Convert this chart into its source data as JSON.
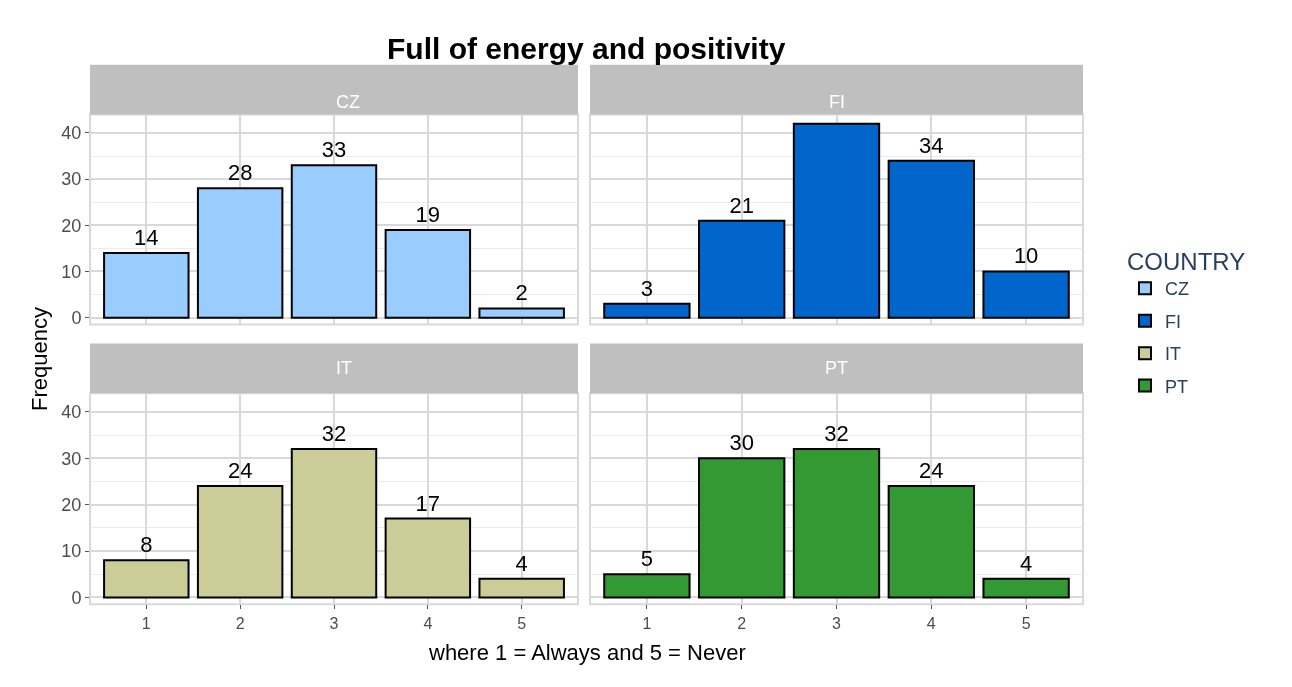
{
  "chart_data": [
    {
      "type": "bar",
      "title": "CZ",
      "annotations": [
        "Full of energy and positivity"
      ],
      "ylabel": "Frequency",
      "legend_title": "COUNTRY",
      "legend": "right",
      "categories": [
        "1",
        "2",
        "3",
        "4",
        "5"
      ],
      "series": [
        {
          "name": "CZ",
          "color": "#99ccff",
          "values": [
            14,
            28,
            33,
            19,
            2
          ],
          "value_labels": [
            "14",
            "28",
            "33",
            "19",
            "2"
          ]
        }
      ],
      "ylim": [
        -1.5,
        44
      ],
      "yticks": [
        0,
        10,
        20,
        30,
        40
      ],
      "grid": true,
      "tick_labels": "y"
    },
    {
      "type": "bar",
      "title": "FI",
      "categories": [
        "1",
        "2",
        "3",
        "4",
        "5"
      ],
      "series": [
        {
          "name": "FI",
          "color": "#0066cc",
          "values": [
            3,
            21,
            42,
            34,
            10
          ],
          "value_labels": [
            "3",
            "21",
            null,
            "34",
            "10"
          ]
        }
      ],
      "ylim": [
        -1.5,
        44
      ],
      "yticks": [
        0,
        10,
        20,
        30,
        40
      ],
      "grid": true,
      "tick_labels": false
    },
    {
      "type": "bar",
      "title": "IT",
      "xlabel": "where 1 = Always and 5 = Never",
      "categories": [
        "1",
        "2",
        "3",
        "4",
        "5"
      ],
      "series": [
        {
          "name": "IT",
          "color": "#cccc99",
          "values": [
            8,
            24,
            32,
            17,
            4
          ],
          "value_labels": [
            "8",
            "24",
            "32",
            "17",
            "4"
          ]
        }
      ],
      "ylim": [
        -1.5,
        44
      ],
      "yticks": [
        0,
        10,
        20,
        30,
        40
      ],
      "grid": true
    },
    {
      "type": "bar",
      "title": "PT",
      "categories": [
        "1",
        "2",
        "3",
        "4",
        "5"
      ],
      "series": [
        {
          "name": "PT",
          "color": "#339933",
          "values": [
            5,
            30,
            32,
            24,
            4
          ],
          "value_labels": [
            "5",
            "30",
            "32",
            "24",
            "4"
          ]
        }
      ],
      "ylim": [
        -1.5,
        44
      ],
      "yticks": [
        0,
        10,
        20,
        30,
        40
      ],
      "grid": true,
      "tick_labels": "x"
    }
  ]
}
